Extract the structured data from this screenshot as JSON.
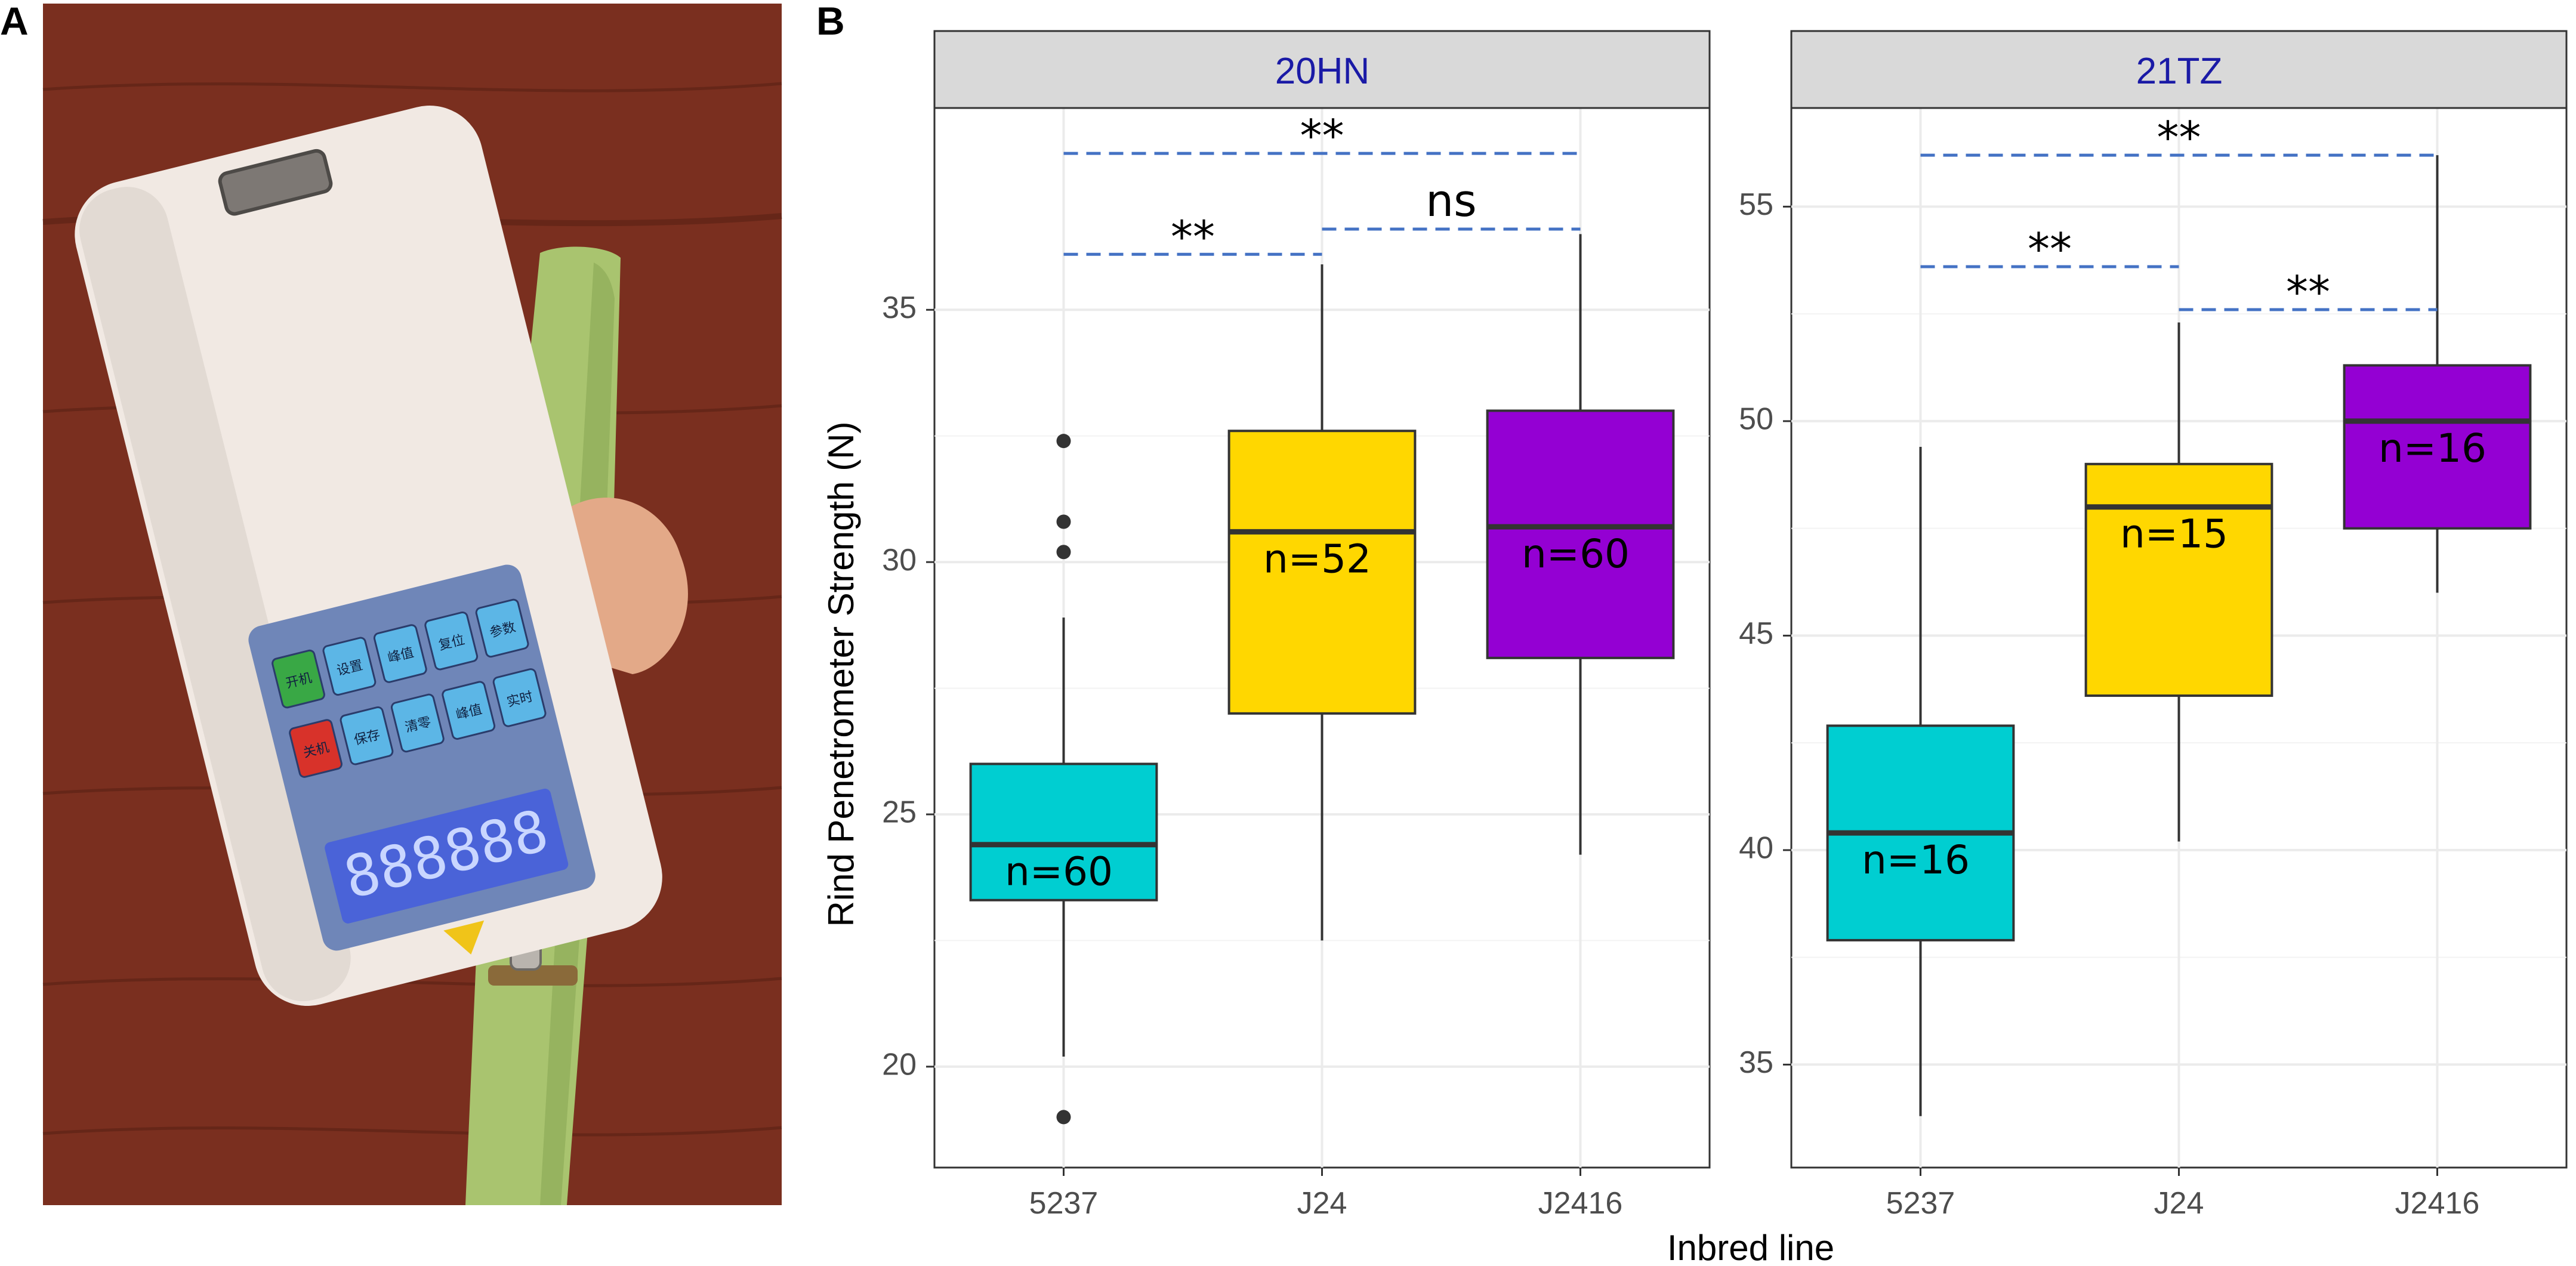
{
  "panel_labels": {
    "a": "A",
    "b": "B"
  },
  "photo": {
    "display_digits": "888888",
    "keypad_labels": [
      "开机",
      "设置",
      "峰值",
      "复位",
      "参数",
      "关机",
      "保存",
      "清零",
      "峰值",
      "实时"
    ],
    "colors": {
      "wood": "#7a2f1f",
      "wood_dark": "#5e2215",
      "device": "#f1e9e3",
      "keypad": "#6f86b8",
      "screen": "#4a63d8",
      "stalk": "#a9c46f"
    }
  },
  "axes": {
    "xlabel": "Inbred line",
    "ylabel": "Rind Penetrometer Strength (N)"
  },
  "colors": {
    "5237": "#00CED1",
    "J24": "#FFD700",
    "J2416": "#9400D3",
    "strip_bg": "#d9d9d9",
    "strip_text": "#1a1aa6",
    "sig_line": "#4472c4",
    "grid": "#ebebeb"
  },
  "chart_data": [
    {
      "type": "boxplot",
      "title": "20HN",
      "categories": [
        "5237",
        "J24",
        "J2416"
      ],
      "ylim": [
        18,
        39
      ],
      "yticks": [
        20,
        25,
        30,
        35
      ],
      "yticklabels": [
        "20",
        "25",
        "30",
        "35"
      ],
      "boxes": [
        {
          "category": "5237",
          "whisker_low": 20.2,
          "q1": 23.3,
          "median": 24.4,
          "q3": 26.0,
          "whisker_high": 28.9,
          "outliers": [
            19.0,
            30.2,
            30.8,
            32.4
          ],
          "n_label": "n=60"
        },
        {
          "category": "J24",
          "whisker_low": 22.5,
          "q1": 27.0,
          "median": 30.6,
          "q3": 32.6,
          "whisker_high": 35.9,
          "outliers": [],
          "n_label": "n=52"
        },
        {
          "category": "J2416",
          "whisker_low": 24.2,
          "q1": 28.1,
          "median": 30.7,
          "q3": 33.0,
          "whisker_high": 36.5,
          "outliers": [],
          "n_label": "n=60"
        }
      ],
      "comparisons": [
        {
          "from": "5237",
          "to": "J24",
          "y": 36.1,
          "label": "**"
        },
        {
          "from": "J24",
          "to": "J2416",
          "y": 36.6,
          "label": "ns"
        },
        {
          "from": "5237",
          "to": "J2416",
          "y": 38.1,
          "label": "**"
        }
      ]
    },
    {
      "type": "boxplot",
      "title": "21TZ",
      "categories": [
        "5237",
        "J24",
        "J2416"
      ],
      "ylim": [
        32.6,
        57.3
      ],
      "yticks": [
        35,
        40,
        45,
        50,
        55
      ],
      "yticklabels": [
        "35",
        "40",
        "45",
        "50",
        "55"
      ],
      "boxes": [
        {
          "category": "5237",
          "whisker_low": 33.8,
          "q1": 37.9,
          "median": 40.4,
          "q3": 42.9,
          "whisker_high": 49.4,
          "outliers": [],
          "n_label": "n=16"
        },
        {
          "category": "J24",
          "whisker_low": 40.2,
          "q1": 43.6,
          "median": 48.0,
          "q3": 49.0,
          "whisker_high": 52.3,
          "outliers": [],
          "n_label": "n=15"
        },
        {
          "category": "J2416",
          "whisker_low": 46.0,
          "q1": 47.5,
          "median": 50.0,
          "q3": 51.3,
          "whisker_high": 56.2,
          "outliers": [],
          "n_label": "n=16"
        }
      ],
      "comparisons": [
        {
          "from": "5237",
          "to": "J24",
          "y": 53.6,
          "label": "**"
        },
        {
          "from": "J24",
          "to": "J2416",
          "y": 52.6,
          "label": "**"
        },
        {
          "from": "5237",
          "to": "J2416",
          "y": 56.2,
          "label": "**"
        }
      ]
    }
  ]
}
